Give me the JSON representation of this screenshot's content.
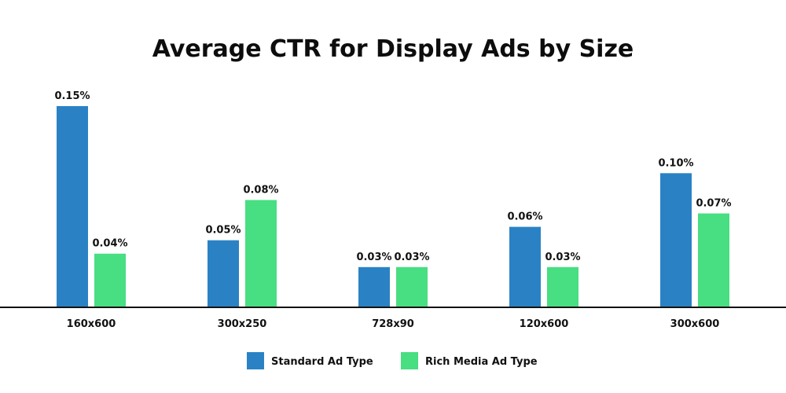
{
  "chart_data": {
    "type": "bar",
    "title": "Average CTR for Display Ads by Size",
    "xlabel": "",
    "ylabel": "",
    "ylim": [
      0,
      0.15
    ],
    "grid": false,
    "legend_position": "bottom-center",
    "categories": [
      "160x600",
      "300x250",
      "728x90",
      "120x600",
      "300x600"
    ],
    "series": [
      {
        "name": "Standard Ad Type",
        "color": "#2a82c5",
        "values": [
          0.15,
          0.05,
          0.03,
          0.06,
          0.1
        ],
        "labels": [
          "0.15%",
          "0.05%",
          "0.03%",
          "0.06%",
          "0.10%"
        ]
      },
      {
        "name": "Rich Media Ad Type",
        "color": "#48de82",
        "values": [
          0.04,
          0.08,
          0.03,
          0.03,
          0.07
        ],
        "labels": [
          "0.04%",
          "0.08%",
          "0.03%",
          "0.03%",
          "0.07%"
        ]
      }
    ]
  }
}
